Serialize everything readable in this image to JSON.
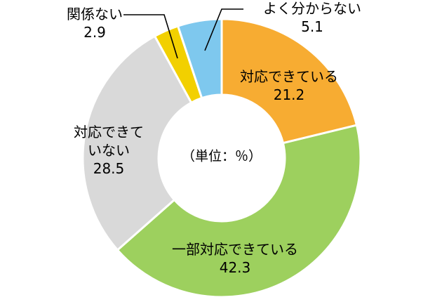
{
  "chart_data": {
    "type": "pie",
    "variant": "donut",
    "center_label": "（単位：％）",
    "start": "12 o'clock",
    "direction": "clockwise",
    "slices": [
      {
        "name": "対応できている",
        "label_lines": [
          "対応できている",
          "21.2"
        ],
        "value": 21.2,
        "color": "#F7AC32"
      },
      {
        "name": "一部対応できている",
        "label_lines": [
          "一部対応できている",
          "42.3"
        ],
        "value": 42.3,
        "color": "#9DD05E"
      },
      {
        "name": "対応できていない",
        "label_lines": [
          "対応できて",
          "いない",
          "28.5"
        ],
        "value": 28.5,
        "color": "#D9D9D9"
      },
      {
        "name": "関係ない",
        "label_lines": [
          "関係ない",
          "2.9"
        ],
        "value": 2.9,
        "color": "#F2D000"
      },
      {
        "name": "よく分からない",
        "label_lines": [
          "よく分からない",
          "5.1"
        ],
        "value": 5.1,
        "color": "#7EC8EE"
      }
    ]
  }
}
